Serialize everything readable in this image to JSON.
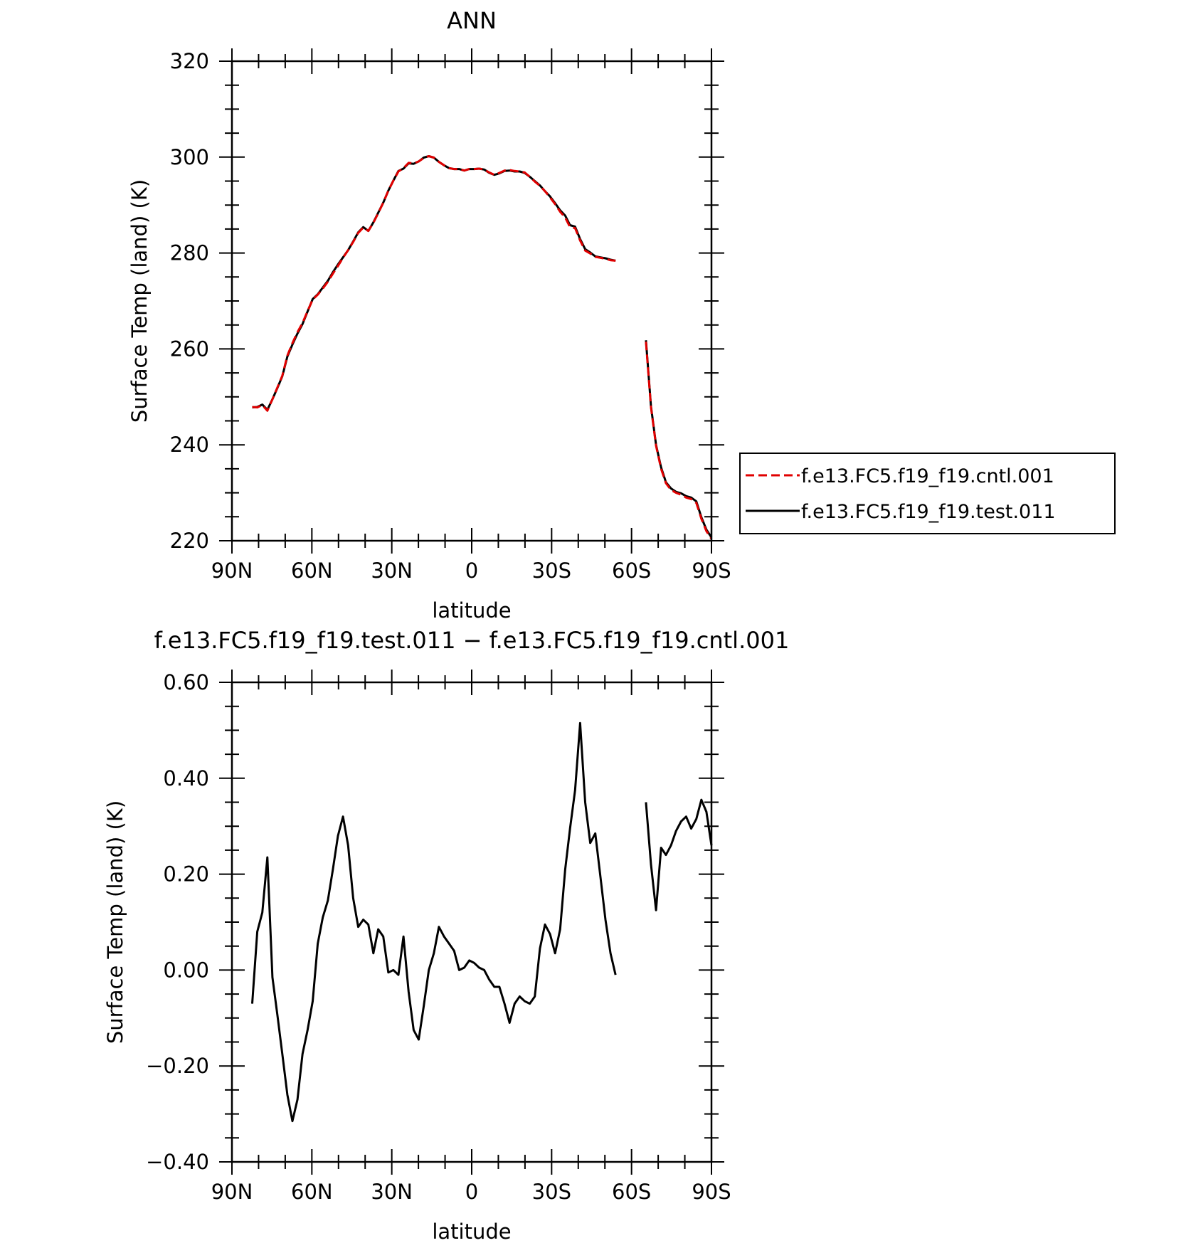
{
  "colors": {
    "cntl": "#e00000",
    "test": "#000000",
    "axis": "#000000",
    "background": "#ffffff"
  },
  "chart_data": [
    {
      "type": "line",
      "title": "ANN",
      "xlabel": "latitude",
      "ylabel": "Surface Temp (land) (K)",
      "xlim": [
        90,
        -90
      ],
      "ylim": [
        220,
        320
      ],
      "xticks": [
        90,
        60,
        30,
        0,
        -30,
        -60,
        -90
      ],
      "xtick_labels": [
        "90N",
        "60N",
        "30N",
        "0",
        "30S",
        "60S",
        "90S"
      ],
      "yticks": [
        220,
        240,
        260,
        280,
        300,
        320
      ],
      "ytick_labels": [
        "220",
        "240",
        "260",
        "280",
        "300",
        "320"
      ],
      "legend": {
        "placement": "right",
        "entries": [
          {
            "name": "f.e13.FC5.f19_f19.cntl.001",
            "color": "#e00000",
            "style": "dashed"
          },
          {
            "name": "f.e13.FC5.f19_f19.test.011",
            "color": "#000000",
            "style": "solid"
          }
        ]
      },
      "series": [
        {
          "name": "f.e13.FC5.f19_f19.cntl.001",
          "color": "#e00000",
          "style": "dashed",
          "segments": [
            {
              "x": [
                82.4,
                80.5,
                78.6,
                76.7,
                74.8,
                72.9,
                71.1,
                69.2,
                67.3,
                65.4,
                63.5,
                61.6,
                59.7,
                57.8,
                55.9,
                54.0,
                52.1,
                50.2,
                48.3,
                46.4,
                44.5,
                42.6,
                40.7,
                38.8,
                36.9,
                35.1,
                33.2,
                31.3,
                29.4,
                27.5,
                25.6,
                23.7,
                21.8,
                19.9,
                18.0,
                16.1,
                14.2,
                12.3,
                10.4,
                8.5,
                6.6,
                4.7,
                2.8,
                0.9,
                -0.9,
                -2.8,
                -4.7,
                -6.6,
                -8.5,
                -10.4,
                -12.3,
                -14.2,
                -16.1,
                -18.0,
                -19.9,
                -21.8,
                -23.7,
                -25.6,
                -27.5,
                -29.4,
                -31.3,
                -33.2,
                -35.1,
                -36.9,
                -38.8,
                -40.7,
                -42.6,
                -44.5,
                -46.4,
                -48.3,
                -50.2,
                -52.1,
                -54.0
              ],
              "y": [
                247.9,
                247.8,
                248.3,
                247.1,
                249.5,
                252.0,
                254.4,
                258.6,
                261.2,
                263.5,
                265.4,
                267.9,
                270.3,
                271.3,
                272.6,
                274.0,
                275.7,
                277.3,
                279.0,
                280.6,
                282.3,
                284.2,
                285.3,
                284.6,
                286.3,
                288.3,
                290.5,
                293.0,
                295.1,
                297.0,
                297.7,
                298.8,
                298.7,
                299.1,
                299.8,
                300.2,
                299.9,
                299.0,
                298.3,
                297.7,
                297.5,
                297.5,
                297.2,
                297.5,
                297.5,
                297.6,
                297.4,
                296.8,
                296.3,
                296.7,
                297.2,
                297.3,
                297.1,
                297.0,
                296.8,
                295.9,
                294.9,
                294.0,
                292.9,
                291.6,
                290.2,
                288.6,
                287.4,
                285.4,
                285.2,
                282.6,
                280.5,
                279.9,
                279.2,
                279.0,
                278.8,
                278.5,
                278.4
              ]
            },
            {
              "x": [
                -65.4,
                -67.3,
                -69.2,
                -71.1,
                -72.9,
                -74.8,
                -76.7,
                -78.6,
                -80.5,
                -82.4,
                -84.3,
                -86.2,
                -88.1,
                -90.0
              ],
              "y": [
                261.5,
                247.8,
                239.8,
                235.0,
                232.0,
                230.6,
                230.0,
                229.6,
                229.0,
                228.7,
                227.9,
                224.6,
                222.0,
                220.4
              ]
            }
          ]
        },
        {
          "name": "f.e13.FC5.f19_f19.test.011",
          "color": "#000000",
          "style": "solid",
          "segments": [
            {
              "x": [
                82.4,
                80.5,
                78.6,
                76.7,
                74.8,
                72.9,
                71.1,
                69.2,
                67.3,
                65.4,
                63.5,
                61.6,
                59.7,
                57.8,
                55.9,
                54.0,
                52.1,
                50.2,
                48.3,
                46.4,
                44.5,
                42.6,
                40.7,
                38.8,
                36.9,
                35.1,
                33.2,
                31.3,
                29.4,
                27.5,
                25.6,
                23.7,
                21.8,
                19.9,
                18.0,
                16.1,
                14.2,
                12.3,
                10.4,
                8.5,
                6.6,
                4.7,
                2.8,
                0.9,
                -0.9,
                -2.8,
                -4.7,
                -6.6,
                -8.5,
                -10.4,
                -12.3,
                -14.2,
                -16.1,
                -18.0,
                -19.9,
                -21.8,
                -23.7,
                -25.6,
                -27.5,
                -29.4,
                -31.3,
                -33.2,
                -35.1,
                -36.9,
                -38.8,
                -40.7,
                -42.6,
                -44.5,
                -46.4,
                -48.3,
                -50.2,
                -52.1,
                -54.0
              ],
              "y": [
                247.8,
                247.9,
                248.4,
                247.3,
                249.5,
                251.9,
                254.3,
                258.4,
                260.9,
                263.2,
                265.2,
                267.8,
                270.4,
                271.4,
                272.8,
                274.2,
                276.0,
                277.6,
                279.1,
                280.6,
                282.4,
                284.3,
                285.4,
                284.6,
                286.4,
                288.4,
                290.5,
                293.0,
                295.1,
                297.1,
                297.6,
                298.7,
                298.6,
                299.1,
                299.9,
                300.2,
                299.9,
                299.0,
                298.3,
                297.7,
                297.5,
                297.5,
                297.2,
                297.5,
                297.5,
                297.6,
                297.4,
                296.7,
                296.3,
                296.6,
                297.1,
                297.2,
                297.0,
                297.0,
                296.7,
                295.9,
                295.0,
                294.1,
                292.9,
                291.8,
                290.4,
                288.9,
                287.8,
                285.8,
                285.5,
                282.9,
                280.8,
                280.1,
                279.3,
                279.1,
                278.9,
                278.6,
                278.4
              ]
            },
            {
              "x": [
                -65.4,
                -67.3,
                -69.2,
                -71.1,
                -72.9,
                -74.8,
                -76.7,
                -78.6,
                -80.5,
                -82.4,
                -84.3,
                -86.2,
                -88.1,
                -90.0
              ],
              "y": [
                261.8,
                248.0,
                240.0,
                235.3,
                232.2,
                230.9,
                230.2,
                229.9,
                229.3,
                229.0,
                228.2,
                224.9,
                222.3,
                220.7
              ]
            }
          ]
        }
      ]
    },
    {
      "type": "line",
      "title": "f.e13.FC5.f19_f19.test.011 − f.e13.FC5.f19_f19.cntl.001",
      "xlabel": "latitude",
      "ylabel": "Surface Temp (land) (K)",
      "xlim": [
        90,
        -90
      ],
      "ylim": [
        -0.4,
        0.6
      ],
      "xticks": [
        90,
        60,
        30,
        0,
        -30,
        -60,
        -90
      ],
      "xtick_labels": [
        "90N",
        "60N",
        "30N",
        "0",
        "30S",
        "60S",
        "90S"
      ],
      "yticks": [
        -0.4,
        -0.2,
        0.0,
        0.2,
        0.4,
        0.6
      ],
      "ytick_labels": [
        "−0.40",
        "−0.20",
        "0.00",
        "0.20",
        "0.40",
        "0.60"
      ],
      "series": [
        {
          "color": "#000000",
          "style": "solid",
          "segments": [
            {
              "x": [
                82.4,
                80.5,
                78.6,
                76.7,
                74.8,
                72.9,
                71.1,
                69.2,
                67.3,
                65.4,
                63.5,
                61.6,
                59.7,
                57.8,
                55.9,
                54.0,
                52.1,
                50.2,
                48.3,
                46.4,
                44.5,
                42.6,
                40.7,
                38.8,
                36.9,
                35.1,
                33.2,
                31.3,
                29.4,
                27.5,
                25.6,
                23.7,
                21.8,
                19.9,
                18.0,
                16.1,
                14.2,
                12.3,
                10.4,
                8.5,
                6.6,
                4.7,
                2.8,
                0.9,
                -0.9,
                -2.8,
                -4.7,
                -6.6,
                -8.5,
                -10.4,
                -12.3,
                -14.2,
                -16.1,
                -18.0,
                -19.9,
                -21.8,
                -23.7,
                -25.6,
                -27.5,
                -29.4,
                -31.3,
                -33.2,
                -35.1,
                -36.9,
                -38.8,
                -40.7,
                -42.6,
                -44.5,
                -46.4,
                -48.3,
                -50.2,
                -52.1,
                -54.0
              ],
              "y": [
                -0.07,
                0.08,
                0.12,
                0.235,
                -0.015,
                -0.095,
                -0.175,
                -0.26,
                -0.315,
                -0.27,
                -0.175,
                -0.125,
                -0.065,
                0.055,
                0.11,
                0.145,
                0.21,
                0.28,
                0.32,
                0.26,
                0.15,
                0.09,
                0.105,
                0.095,
                0.035,
                0.085,
                0.07,
                -0.005,
                0.0,
                -0.01,
                0.07,
                -0.045,
                -0.125,
                -0.145,
                -0.075,
                0.0,
                0.035,
                0.09,
                0.07,
                0.055,
                0.04,
                0.0,
                0.005,
                0.02,
                0.015,
                0.005,
                0.0,
                -0.02,
                -0.035,
                -0.035,
                -0.07,
                -0.11,
                -0.07,
                -0.055,
                -0.065,
                -0.07,
                -0.055,
                0.045,
                0.095,
                0.075,
                0.035,
                0.085,
                0.21,
                0.295,
                0.375,
                0.515,
                0.35,
                0.265,
                0.285,
                0.195,
                0.105,
                0.035,
                -0.01
              ]
            },
            {
              "x": [
                -65.4,
                -67.3,
                -69.2,
                -71.1,
                -72.9,
                -74.8,
                -76.7,
                -78.6,
                -80.5,
                -82.4,
                -84.3,
                -86.2,
                -88.1,
                -90.0
              ],
              "y": [
                0.35,
                0.22,
                0.125,
                0.255,
                0.24,
                0.26,
                0.29,
                0.31,
                0.32,
                0.295,
                0.315,
                0.355,
                0.33,
                0.26
              ]
            }
          ]
        }
      ]
    }
  ]
}
